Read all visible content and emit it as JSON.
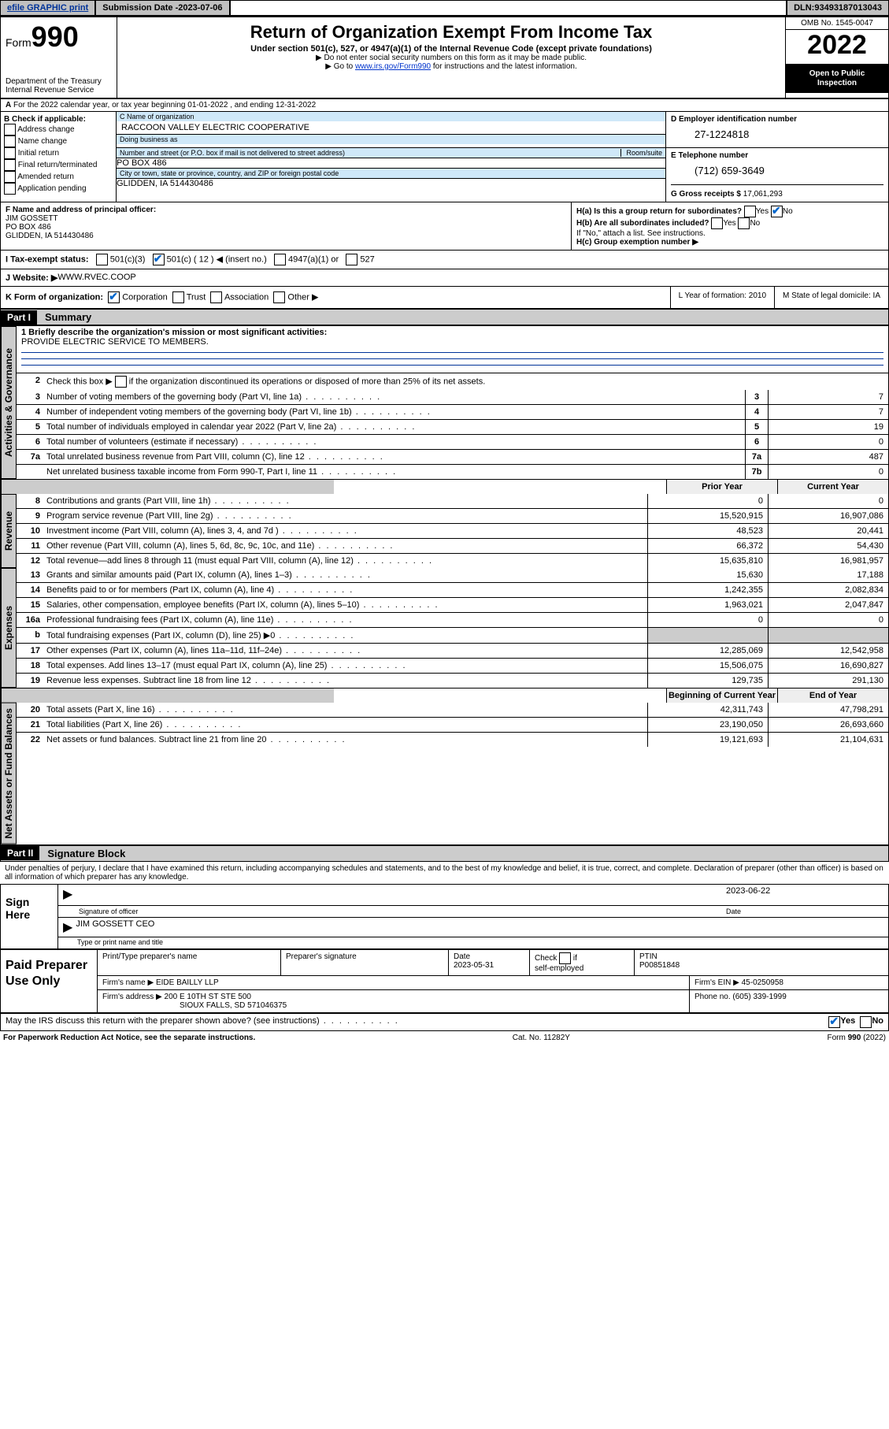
{
  "topbar": {
    "efile": "efile GRAPHIC print",
    "submission_label": "Submission Date - ",
    "submission_date": "2023-07-06",
    "dln_label": "DLN: ",
    "dln": "93493187013043"
  },
  "header": {
    "form_label": "Form",
    "form_number": "990",
    "dept": "Department of the Treasury\nInternal Revenue Service",
    "title": "Return of Organization Exempt From Income Tax",
    "subtitle": "Under section 501(c), 527, or 4947(a)(1) of the Internal Revenue Code (except private foundations)",
    "note1": "▶ Do not enter social security numbers on this form as it may be made public.",
    "note2_pre": "▶ Go to ",
    "note2_link": "www.irs.gov/Form990",
    "note2_post": " for instructions and the latest information.",
    "omb": "OMB No. 1545-0047",
    "year": "2022",
    "inspect1": "Open to Public",
    "inspect2": "Inspection"
  },
  "periodA": "For the 2022 calendar year, or tax year beginning 01-01-2022    , and ending 12-31-2022",
  "boxB": {
    "label": "B Check if applicable:",
    "items": [
      "Address change",
      "Name change",
      "Initial return",
      "Final return/terminated",
      "Amended return",
      "Application pending"
    ]
  },
  "boxC": {
    "name_lbl": "C Name of organization",
    "name": "RACCOON VALLEY ELECTRIC COOPERATIVE",
    "dba_lbl": "Doing business as",
    "dba": "",
    "addr_lbl": "Number and street (or P.O. box if mail is not delivered to street address)",
    "room_lbl": "Room/suite",
    "addr": "PO BOX 486",
    "city_lbl": "City or town, state or province, country, and ZIP or foreign postal code",
    "city": "GLIDDEN, IA  514430486"
  },
  "boxD": {
    "lbl": "D Employer identification number",
    "ein": "27-1224818"
  },
  "boxE": {
    "lbl": "E Telephone number",
    "phone": "(712) 659-3649"
  },
  "boxG": {
    "lbl": "G Gross receipts $ ",
    "val": "17,061,293"
  },
  "boxF": {
    "lbl": "F Name and address of principal officer:",
    "name": "JIM GOSSETT",
    "addr1": "PO BOX 486",
    "addr2": "GLIDDEN, IA  514430486"
  },
  "boxH": {
    "a": "H(a)  Is this a group return for subordinates?",
    "a_yes": "Yes",
    "a_no": "No",
    "b": "H(b)  Are all subordinates included?",
    "b_yes": "Yes",
    "b_no": "No",
    "b_note": "If \"No,\" attach a list. See instructions.",
    "c": "H(c)  Group exemption number ▶"
  },
  "taxI": {
    "lbl": "I   Tax-exempt status:",
    "o1": "501(c)(3)",
    "o2a": "501(c) ( ",
    "o2b": "12",
    "o2c": " ) ◀ (insert no.)",
    "o3": "4947(a)(1) or",
    "o4": "527"
  },
  "siteJ": {
    "lbl": "J   Website: ▶  ",
    "val": "WWW.RVEC.COOP"
  },
  "rowK": {
    "lbl": "K Form of organization:",
    "o1": "Corporation",
    "o2": "Trust",
    "o3": "Association",
    "o4": "Other ▶",
    "L": "L Year of formation: 2010",
    "M": "M State of legal domicile: IA"
  },
  "part1": {
    "hdr": "Part I",
    "title": "Summary"
  },
  "part2": {
    "hdr": "Part II",
    "title": "Signature Block"
  },
  "tabs": {
    "gov": "Activities & Governance",
    "rev": "Revenue",
    "exp": "Expenses",
    "net": "Net Assets or Fund Balances"
  },
  "summary": {
    "line1_lbl": "1   Briefly describe the organization's mission or most significant activities:",
    "line1_val": "PROVIDE ELECTRIC SERVICE TO MEMBERS.",
    "line2": "Check this box ▶       if the organization discontinued its operations or disposed of more than 25% of its net assets.",
    "rows_gov": [
      {
        "n": "3",
        "t": "Number of voting members of the governing body (Part VI, line 1a)",
        "b": "3",
        "v": "7"
      },
      {
        "n": "4",
        "t": "Number of independent voting members of the governing body (Part VI, line 1b)",
        "b": "4",
        "v": "7"
      },
      {
        "n": "5",
        "t": "Total number of individuals employed in calendar year 2022 (Part V, line 2a)",
        "b": "5",
        "v": "19"
      },
      {
        "n": "6",
        "t": "Total number of volunteers (estimate if necessary)",
        "b": "6",
        "v": "0"
      },
      {
        "n": "7a",
        "t": "Total unrelated business revenue from Part VIII, column (C), line 12",
        "b": "7a",
        "v": "487"
      },
      {
        "n": "",
        "t": "Net unrelated business taxable income from Form 990-T, Part I, line 11",
        "b": "7b",
        "v": "0"
      }
    ],
    "col_hdr_prior": "Prior Year",
    "col_hdr_curr": "Current Year",
    "rows_rev": [
      {
        "n": "8",
        "t": "Contributions and grants (Part VIII, line 1h)",
        "p": "0",
        "c": "0"
      },
      {
        "n": "9",
        "t": "Program service revenue (Part VIII, line 2g)",
        "p": "15,520,915",
        "c": "16,907,086"
      },
      {
        "n": "10",
        "t": "Investment income (Part VIII, column (A), lines 3, 4, and 7d )",
        "p": "48,523",
        "c": "20,441"
      },
      {
        "n": "11",
        "t": "Other revenue (Part VIII, column (A), lines 5, 6d, 8c, 9c, 10c, and 11e)",
        "p": "66,372",
        "c": "54,430"
      },
      {
        "n": "12",
        "t": "Total revenue—add lines 8 through 11 (must equal Part VIII, column (A), line 12)",
        "p": "15,635,810",
        "c": "16,981,957"
      }
    ],
    "rows_exp": [
      {
        "n": "13",
        "t": "Grants and similar amounts paid (Part IX, column (A), lines 1–3)",
        "p": "15,630",
        "c": "17,188"
      },
      {
        "n": "14",
        "t": "Benefits paid to or for members (Part IX, column (A), line 4)",
        "p": "1,242,355",
        "c": "2,082,834"
      },
      {
        "n": "15",
        "t": "Salaries, other compensation, employee benefits (Part IX, column (A), lines 5–10)",
        "p": "1,963,021",
        "c": "2,047,847"
      },
      {
        "n": "16a",
        "t": "Professional fundraising fees (Part IX, column (A), line 11e)",
        "p": "0",
        "c": "0"
      },
      {
        "n": "b",
        "t": "Total fundraising expenses (Part IX, column (D), line 25) ▶0",
        "p": "",
        "c": "",
        "shade": true
      },
      {
        "n": "17",
        "t": "Other expenses (Part IX, column (A), lines 11a–11d, 11f–24e)",
        "p": "12,285,069",
        "c": "12,542,958"
      },
      {
        "n": "18",
        "t": "Total expenses. Add lines 13–17 (must equal Part IX, column (A), line 25)",
        "p": "15,506,075",
        "c": "16,690,827"
      },
      {
        "n": "19",
        "t": "Revenue less expenses. Subtract line 18 from line 12",
        "p": "129,735",
        "c": "291,130"
      }
    ],
    "col_hdr_beg": "Beginning of Current Year",
    "col_hdr_end": "End of Year",
    "rows_net": [
      {
        "n": "20",
        "t": "Total assets (Part X, line 16)",
        "p": "42,311,743",
        "c": "47,798,291"
      },
      {
        "n": "21",
        "t": "Total liabilities (Part X, line 26)",
        "p": "23,190,050",
        "c": "26,693,660"
      },
      {
        "n": "22",
        "t": "Net assets or fund balances. Subtract line 21 from line 20",
        "p": "19,121,693",
        "c": "21,104,631"
      }
    ]
  },
  "penalties": "Under penalties of perjury, I declare that I have examined this return, including accompanying schedules and statements, and to the best of my knowledge and belief, it is true, correct, and complete. Declaration of preparer (other than officer) is based on all information of which preparer has any knowledge.",
  "sign": {
    "here": "Sign Here",
    "sig_lbl": "Signature of officer",
    "date_lbl": "Date",
    "date": "2023-06-22",
    "name": "JIM GOSSETT CEO",
    "name_lbl": "Type or print name and title"
  },
  "paid": {
    "title": "Paid Preparer Use Only",
    "h1": "Print/Type preparer's name",
    "h2": "Preparer's signature",
    "h3": "Date",
    "date": "2023-05-31",
    "h4": "Check        if self-employed",
    "h5": "PTIN",
    "ptin": "P00851848",
    "firm_name_lbl": "Firm's name      ▶ ",
    "firm_name": "EIDE BAILLY LLP",
    "firm_ein_lbl": "Firm's EIN ▶ ",
    "firm_ein": "45-0250958",
    "firm_addr_lbl": "Firm's address ▶ ",
    "firm_addr1": "200 E 10TH ST STE 500",
    "firm_addr2": "SIOUX FALLS, SD  571046375",
    "phone_lbl": "Phone no. ",
    "phone": "(605) 339-1999"
  },
  "discuss": {
    "q": "May the IRS discuss this return with the preparer shown above? (see instructions)",
    "yes": "Yes",
    "no": "No"
  },
  "footer": {
    "left": "For Paperwork Reduction Act Notice, see the separate instructions.",
    "mid": "Cat. No. 11282Y",
    "right": "Form 990 (2022)"
  },
  "colors": {
    "link": "#0033cc",
    "highlight": "#cfe8f9",
    "grey": "#c0c0c0"
  }
}
